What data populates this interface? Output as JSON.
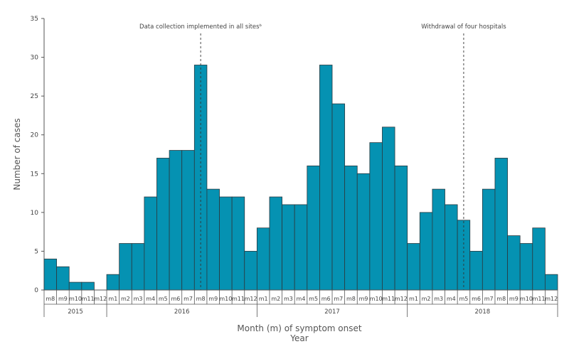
{
  "colors": {
    "bar": "#0592b2",
    "bar_stroke": "#2b3a40",
    "axis": "#555555"
  },
  "chart_data": {
    "type": "bar",
    "ylabel": "Number of cases",
    "xlabel": "Month (m) of symptom onset",
    "xlabel2": "Year",
    "ylim": [
      0,
      35
    ],
    "yticks": [
      0,
      5,
      10,
      15,
      20,
      25,
      30,
      35
    ],
    "grid": false,
    "categories": [
      "m8",
      "m9",
      "m10",
      "m11",
      "m12",
      "m1",
      "m2",
      "m3",
      "m4",
      "m5",
      "m6",
      "m7",
      "m8",
      "m9",
      "m10",
      "m11",
      "m12",
      "m1",
      "m2",
      "m3",
      "m4",
      "m5",
      "m6",
      "m7",
      "m8",
      "m9",
      "m10",
      "m11",
      "m12",
      "m1",
      "m2",
      "m3",
      "m4",
      "m5",
      "m6",
      "m7",
      "m8",
      "m9",
      "m10",
      "m11",
      "m12"
    ],
    "values": [
      4,
      3,
      1,
      1,
      0,
      2,
      6,
      6,
      12,
      17,
      18,
      18,
      29,
      13,
      12,
      12,
      5,
      8,
      12,
      11,
      11,
      16,
      29,
      24,
      16,
      15,
      19,
      21,
      16,
      6,
      10,
      13,
      11,
      9,
      5,
      13,
      17,
      7,
      6,
      8,
      2
    ],
    "years": [
      {
        "label": "2015",
        "start": 0,
        "end": 5
      },
      {
        "label": "2016",
        "start": 5,
        "end": 17
      },
      {
        "label": "2017",
        "start": 17,
        "end": 29
      },
      {
        "label": "2018",
        "start": 29,
        "end": 41
      }
    ],
    "annotations": [
      {
        "text": "Data collection implemented in all sitesᵇ",
        "index": 12
      },
      {
        "text": "Withdrawal of four hospitals",
        "index": 33
      }
    ]
  }
}
